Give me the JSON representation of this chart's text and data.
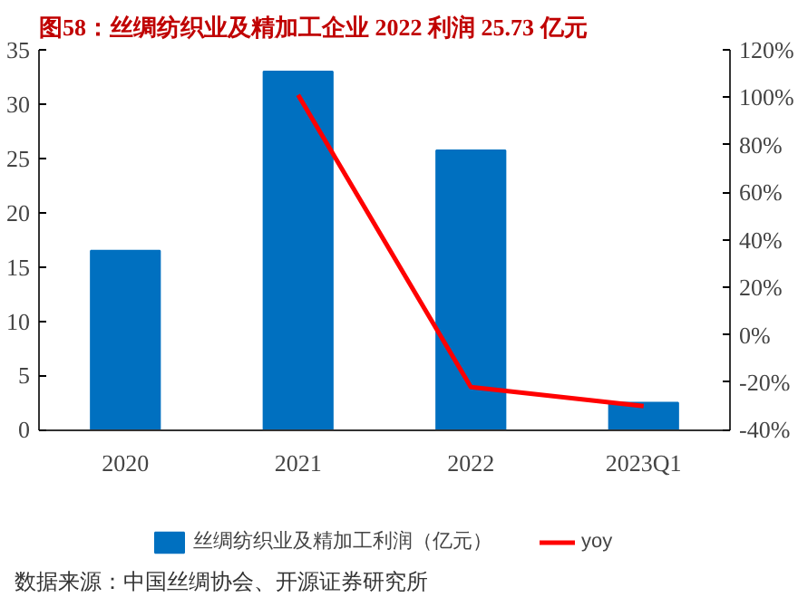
{
  "chart_data": {
    "type": "bar",
    "title": "图58：丝绸纺织业及精加工企业 2022 利润 25.73 亿元",
    "categories": [
      "2020",
      "2021",
      "2022",
      "2023Q1"
    ],
    "series": [
      {
        "name": "丝绸纺织业及精加工利润（亿元）",
        "color": "#0070c0",
        "values": [
          16.5,
          33,
          25.73,
          2.5
        ]
      },
      {
        "name": "yoy",
        "type": "line",
        "axis": "y2",
        "color": "#ff0000",
        "values": [
          null,
          101,
          -22,
          -30
        ]
      }
    ],
    "ylim": [
      0,
      35
    ],
    "yticks": [
      0,
      5,
      10,
      15,
      20,
      25,
      30,
      35
    ],
    "y2lim": [
      -40,
      120
    ],
    "y2ticks": [
      {
        "value": -40,
        "label": "-40%"
      },
      {
        "value": -20,
        "label": "-20%"
      },
      {
        "value": 0,
        "label": "0%"
      },
      {
        "value": 20,
        "label": "20%"
      },
      {
        "value": 40,
        "label": "40%"
      },
      {
        "value": 60,
        "label": "60%"
      },
      {
        "value": 80,
        "label": "80%"
      },
      {
        "value": 100,
        "label": "100%"
      },
      {
        "value": 120,
        "label": "120%"
      }
    ],
    "grid": false,
    "legend": "bottom",
    "marker": "none",
    "line_style": "solid",
    "annotations": [
      "数据来源：中国丝绸协会、开源证券研究所"
    ]
  }
}
